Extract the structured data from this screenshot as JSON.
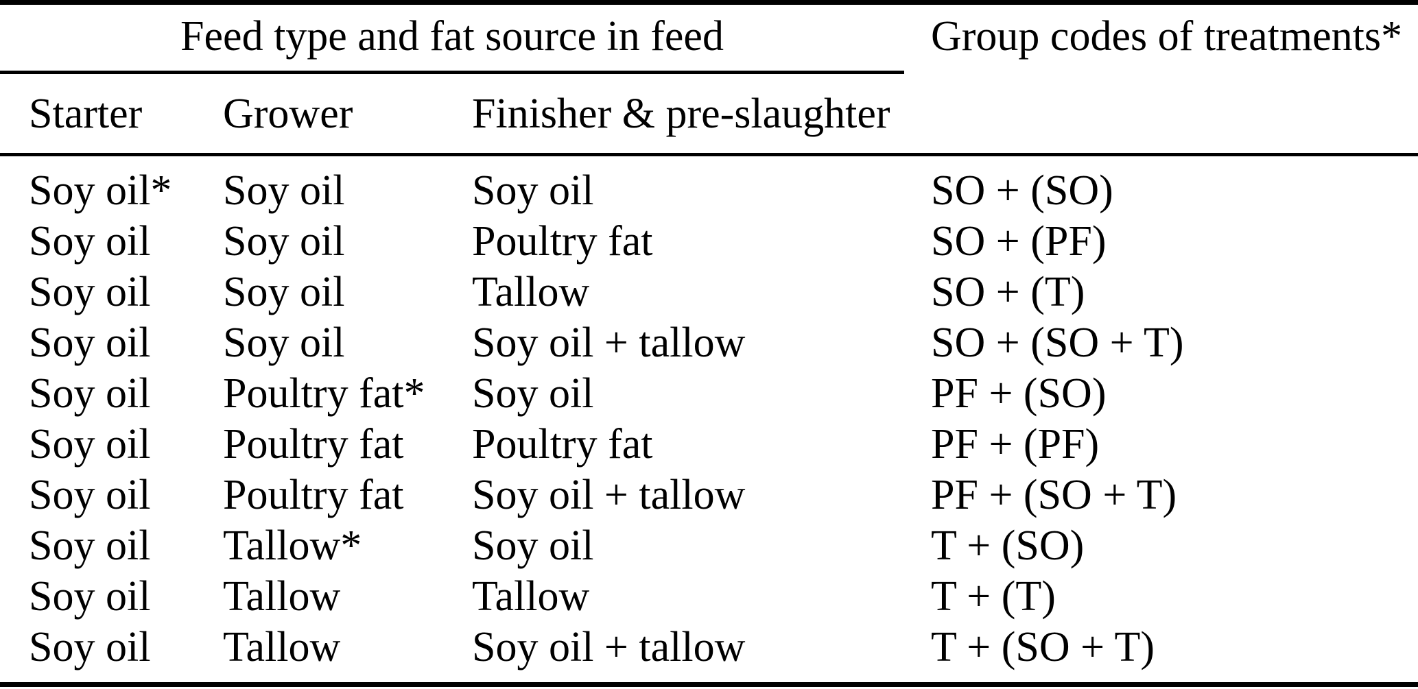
{
  "table": {
    "colors": {
      "text": "#000000",
      "background": "#ffffff",
      "rules": "#000000"
    },
    "header": {
      "span_title": "Feed type and fat source in feed",
      "group_title": "Group codes of treatments*",
      "columns": [
        "Starter",
        "Grower",
        "Finisher & pre-slaughter"
      ]
    },
    "rows": [
      {
        "starter": "Soy oil*",
        "grower": "Soy oil",
        "finisher": "Soy oil",
        "code": "SO + (SO)"
      },
      {
        "starter": "Soy oil",
        "grower": "Soy oil",
        "finisher": "Poultry fat",
        "code": "SO + (PF)"
      },
      {
        "starter": "Soy oil",
        "grower": "Soy oil",
        "finisher": "Tallow",
        "code": "SO + (T)"
      },
      {
        "starter": "Soy oil",
        "grower": "Soy oil",
        "finisher": "Soy oil + tallow",
        "code": "SO + (SO + T)"
      },
      {
        "starter": "Soy oil",
        "grower": "Poultry fat*",
        "finisher": "Soy oil",
        "code": "PF + (SO)"
      },
      {
        "starter": "Soy oil",
        "grower": "Poultry fat",
        "finisher": "Poultry fat",
        "code": "PF + (PF)"
      },
      {
        "starter": "Soy oil",
        "grower": "Poultry fat",
        "finisher": "Soy oil + tallow",
        "code": "PF + (SO + T)"
      },
      {
        "starter": "Soy oil",
        "grower": "Tallow*",
        "finisher": "Soy oil",
        "code": "T + (SO)"
      },
      {
        "starter": "Soy oil",
        "grower": "Tallow",
        "finisher": "Tallow",
        "code": "T + (T)"
      },
      {
        "starter": "Soy oil",
        "grower": "Tallow",
        "finisher": "Soy oil + tallow",
        "code": "T + (SO + T)"
      }
    ]
  }
}
